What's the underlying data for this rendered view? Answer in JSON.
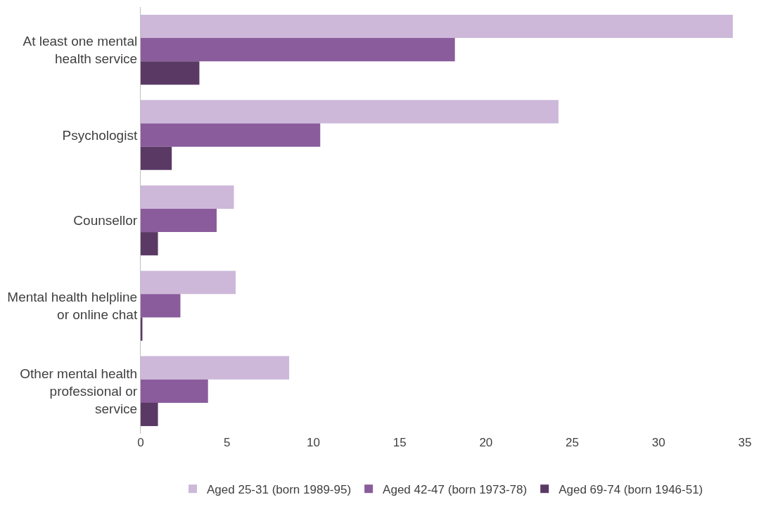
{
  "chart_data": {
    "type": "bar",
    "orientation": "horizontal",
    "categories": [
      "At least one mental health service",
      "Psychologist",
      "Counsellor",
      "Mental health helpline or online chat",
      "Other mental health professional or service"
    ],
    "series": [
      {
        "name": "Aged 25-31 (born 1989-95)",
        "color": "#cdb8d9",
        "values": [
          34.3,
          24.2,
          5.4,
          5.5,
          8.6
        ]
      },
      {
        "name": "Aged 42-47 (born 1973-78)",
        "color": "#8a5c9c",
        "values": [
          18.2,
          10.4,
          4.4,
          2.3,
          3.9
        ]
      },
      {
        "name": "Aged 69-74 (born 1946-51)",
        "color": "#5a3a64",
        "values": [
          3.4,
          1.8,
          1.0,
          0.1,
          1.0
        ]
      }
    ],
    "xlim": [
      0,
      35
    ],
    "xticks": [
      0,
      5,
      10,
      15,
      20,
      25,
      30,
      35
    ],
    "grid": false,
    "legend": "bottom"
  }
}
